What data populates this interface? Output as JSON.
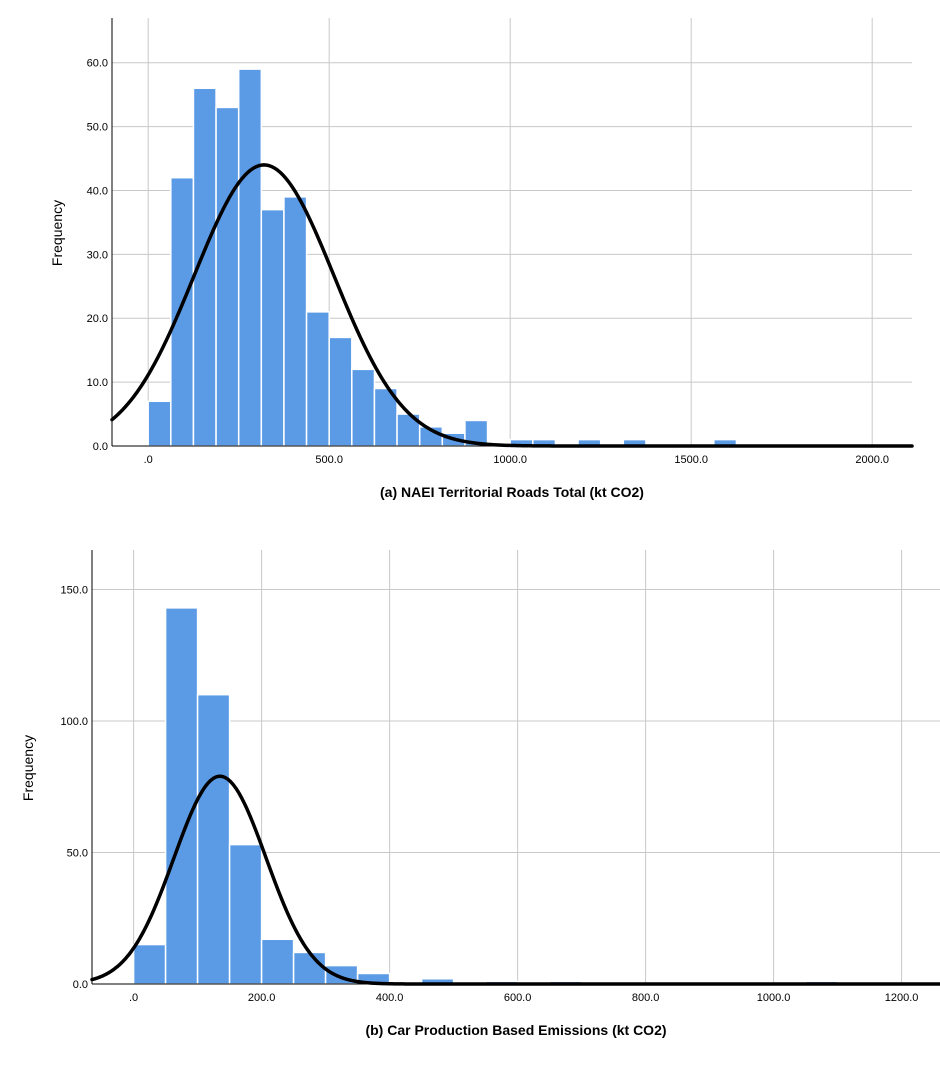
{
  "chart_data": [
    {
      "type": "histogram",
      "panel": "a",
      "xlabel": "(a) NAEI Territorial Roads Total (kt CO2)",
      "ylabel": "Frequency",
      "xlim": [
        -100,
        2110
      ],
      "ylim": [
        0,
        67
      ],
      "x_ticks": [
        0,
        500,
        1000,
        1500,
        2000
      ],
      "x_tick_labels": [
        ".0",
        "500.0",
        "1000.0",
        "1500.0",
        "2000.0"
      ],
      "y_ticks": [
        0,
        10,
        20,
        30,
        40,
        50,
        60
      ],
      "y_tick_labels": [
        "0.0",
        "10.0",
        "20.0",
        "30.0",
        "40.0",
        "50.0",
        "60.0"
      ],
      "bin_width": 62.5,
      "bin_starts": [
        0,
        62.5,
        125,
        187.5,
        250,
        312.5,
        375,
        437.5,
        500,
        562.5,
        625,
        687.5,
        750,
        812.5,
        875,
        937.5,
        1000,
        1062.5,
        1125,
        1187.5,
        1250,
        1312.5,
        1375,
        1437.5,
        1500,
        1562.5
      ],
      "frequencies": [
        7,
        42,
        56,
        53,
        59,
        37,
        39,
        21,
        17,
        12,
        9,
        5,
        3,
        2,
        4,
        0,
        1,
        1,
        0,
        1,
        0,
        1,
        0,
        0,
        0,
        1
      ],
      "normal_curve": {
        "mean": 320,
        "sd": 193,
        "peak": 44
      },
      "grid": true,
      "bar_color": "#5b9be6"
    },
    {
      "type": "histogram",
      "panel": "b",
      "xlabel": "(b) Car Production Based Emissions (kt CO2)",
      "ylabel": "Frequency",
      "xlim": [
        -65,
        1260
      ],
      "ylim": [
        0,
        165
      ],
      "x_ticks": [
        0,
        200,
        400,
        600,
        800,
        1000,
        1200
      ],
      "x_tick_labels": [
        ".0",
        "200.0",
        "400.0",
        "600.0",
        "800.0",
        "1000.0",
        "1200.0"
      ],
      "y_ticks": [
        0,
        50,
        100,
        150
      ],
      "y_tick_labels": [
        "0.0",
        "50.0",
        "100.0",
        "150.0"
      ],
      "bin_width": 50,
      "bin_starts": [
        0,
        50,
        100,
        150,
        200,
        250,
        300,
        350,
        400,
        450,
        500,
        550,
        600,
        650,
        700,
        750,
        800,
        850,
        900,
        950,
        1000,
        1050
      ],
      "frequencies": [
        15,
        143,
        110,
        53,
        17,
        12,
        7,
        4,
        0,
        2,
        0,
        1,
        0,
        1,
        0,
        0,
        0,
        0,
        0,
        0,
        0,
        1
      ],
      "normal_curve": {
        "mean": 135,
        "sd": 72,
        "peak": 79
      },
      "grid": true,
      "bar_color": "#5b9be6"
    }
  ]
}
